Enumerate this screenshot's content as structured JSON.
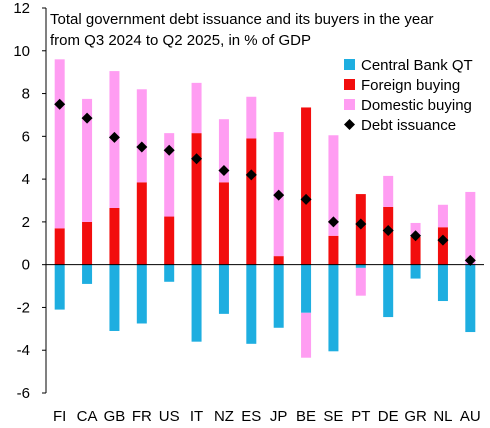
{
  "chart_data": {
    "type": "bar",
    "stacked": true,
    "title_lines": [
      "Total government debt issuance and its buyers in the year",
      "from Q3 2024 to Q2 2025, in % of GDP"
    ],
    "xlabel": "",
    "ylabel": "",
    "categories": [
      "FI",
      "CA",
      "GB",
      "FR",
      "US",
      "IT",
      "NZ",
      "ES",
      "JP",
      "BE",
      "SE",
      "PT",
      "DE",
      "GR",
      "NL",
      "AU"
    ],
    "ylim": [
      -6,
      12
    ],
    "yticks": [
      -6,
      -4,
      -2,
      0,
      2,
      4,
      6,
      8,
      10,
      12
    ],
    "grid": false,
    "legend_position": "right",
    "series": [
      {
        "name": "Central Bank QT",
        "kind": "bar",
        "color": "#1eaee0",
        "values": [
          -2.1,
          -0.9,
          -3.1,
          -2.75,
          -0.8,
          -3.6,
          -2.3,
          -3.7,
          -2.95,
          -2.25,
          -4.05,
          -0.15,
          -2.45,
          -0.65,
          -1.7,
          -3.15
        ]
      },
      {
        "name": "Foreign buying",
        "kind": "bar",
        "color": "#f20d0d",
        "values": [
          1.7,
          2.0,
          2.65,
          3.85,
          2.25,
          6.15,
          3.85,
          5.9,
          0.4,
          7.35,
          1.35,
          3.3,
          2.7,
          1.3,
          1.75,
          0.0
        ]
      },
      {
        "name": "Domestic buying",
        "kind": "bar",
        "color": "#ff9df2",
        "values": [
          7.9,
          5.75,
          6.4,
          4.35,
          3.9,
          2.35,
          2.95,
          1.95,
          5.8,
          -2.1,
          4.7,
          -1.3,
          1.45,
          0.65,
          1.05,
          3.4
        ]
      },
      {
        "name": "Debt issuance",
        "kind": "marker",
        "color": "#000000",
        "values": [
          7.5,
          6.85,
          5.95,
          5.5,
          5.35,
          4.95,
          4.4,
          4.2,
          3.25,
          3.05,
          2.0,
          1.9,
          1.6,
          1.35,
          1.15,
          0.2
        ]
      }
    ]
  }
}
